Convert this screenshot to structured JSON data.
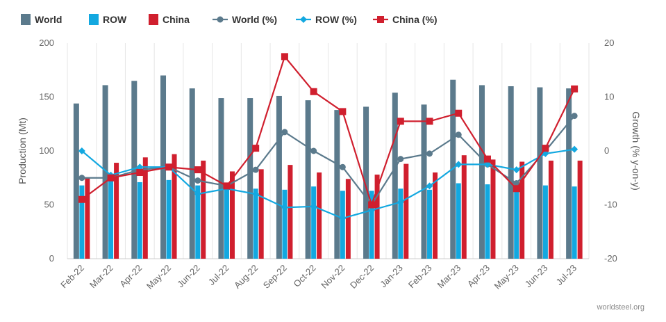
{
  "chart_data": {
    "type": "bar",
    "categories": [
      "Feb-22",
      "Mar-22",
      "Apr-22",
      "May-22",
      "Jun-22",
      "Jul-22",
      "Aug-22",
      "Sep-22",
      "Oct-22",
      "Nov-22",
      "Dec-22",
      "Jan-23",
      "Feb-23",
      "Mar-23",
      "Apr-23",
      "May-23",
      "Jun-23",
      "Jul-23"
    ],
    "bar_series": [
      {
        "name": "World",
        "color": "#5b7a8c",
        "values": [
          144,
          161,
          165,
          170,
          158,
          149,
          149,
          151,
          147,
          138,
          141,
          154,
          143,
          166,
          161,
          160,
          159,
          158
        ]
      },
      {
        "name": "ROW",
        "color": "#13a8e0",
        "values": [
          68,
          72,
          71,
          73,
          68,
          65,
          65,
          64,
          67,
          63,
          63,
          65,
          64,
          70,
          69,
          68,
          68,
          67
        ]
      },
      {
        "name": "China",
        "color": "#d01f2e",
        "values": [
          75,
          89,
          94,
          97,
          91,
          81,
          83,
          87,
          80,
          74,
          78,
          88,
          80,
          96,
          92,
          90,
          91,
          91
        ]
      }
    ],
    "line_series": [
      {
        "name": "World (%)",
        "color": "#5b7a8c",
        "marker": "circle",
        "values": [
          -5,
          -5,
          -3.5,
          -3,
          -5.5,
          -6.5,
          -3.5,
          3.5,
          0,
          -3,
          -10,
          -1.5,
          -0.5,
          3,
          -2.5,
          -6,
          0,
          6.5
        ]
      },
      {
        "name": "ROW (%)",
        "color": "#13a8e0",
        "marker": "diamond",
        "values": [
          0,
          -4.5,
          -3,
          -3,
          -8,
          -7,
          -8,
          -10.5,
          -10.3,
          -12.5,
          -11,
          -9.5,
          -6.5,
          -2.5,
          -2.5,
          -3.5,
          -0.5,
          0.3
        ]
      },
      {
        "name": "China (%)",
        "color": "#d01f2e",
        "marker": "square",
        "values": [
          -9,
          -5,
          -4,
          -3,
          -3.5,
          -6.5,
          0.5,
          17.5,
          11,
          7.3,
          -10,
          5.5,
          5.5,
          7,
          -1.5,
          -7,
          0.5,
          11.5
        ]
      }
    ],
    "y_left": {
      "label": "Production (Mt)",
      "min": 0,
      "max": 200,
      "ticks": [
        0,
        50,
        100,
        150,
        200
      ]
    },
    "y_right": {
      "label": "Growth (% y-on-y)",
      "min": -20,
      "max": 20,
      "ticks": [
        -20,
        -10,
        0,
        10,
        20
      ]
    },
    "grid": "vertical",
    "legend_position": "top-left"
  },
  "credit": "worldsteel.org"
}
